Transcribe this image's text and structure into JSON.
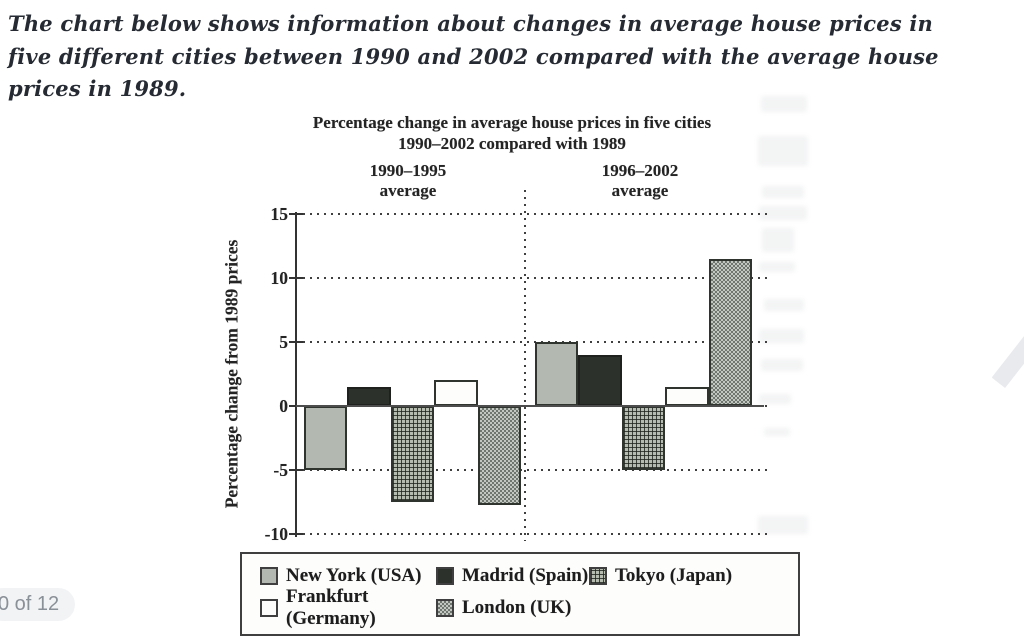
{
  "prompt": {
    "text": "The chart below shows information about changes in average house prices in five different cities between 1990 and 2002 compared with the average house prices in 1989."
  },
  "viewer": {
    "page_indicator": "0 of 12"
  },
  "chart_data": {
    "type": "bar",
    "title": "Percentage change in average house prices in five cities",
    "subtitle": "1990–2002 compared with 1989",
    "ylabel": "Percentage change from 1989 prices",
    "ylim": [
      -10,
      15
    ],
    "yticks": [
      15,
      10,
      5,
      0,
      -5,
      -10
    ],
    "grid": "dotted-horizontal",
    "legend_position": "bottom-box",
    "groups": [
      {
        "range": "1990–1995",
        "label": "average"
      },
      {
        "range": "1996–2002",
        "label": "average"
      }
    ],
    "series": [
      {
        "name": "New York (USA)",
        "pattern": "solid-gray",
        "values": [
          -5,
          5
        ]
      },
      {
        "name": "Madrid (Spain)",
        "pattern": "solid-dark",
        "values": [
          1.5,
          4
        ]
      },
      {
        "name": "Tokyo (Japan)",
        "pattern": "grid-hatch",
        "values": [
          -7.5,
          -5
        ]
      },
      {
        "name": "Frankfurt (Germany)",
        "pattern": "white",
        "values": [
          2,
          1.5
        ]
      },
      {
        "name": "London (UK)",
        "pattern": "checker",
        "values": [
          -7.7,
          11.5
        ]
      }
    ],
    "colors": {
      "bar_gray": "#b3b8b1",
      "bar_dark": "#2d312c",
      "bar_border": "#30342f",
      "checker_dark": "#6f756f",
      "checker_light": "#c3c7c1",
      "axis": "#333333"
    }
  }
}
